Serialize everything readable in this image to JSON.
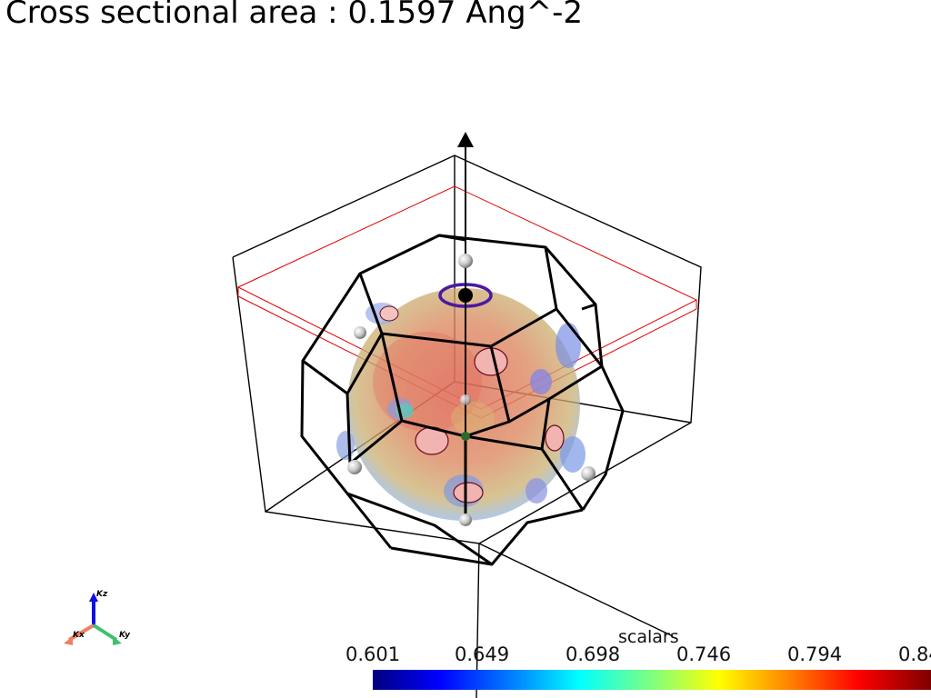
{
  "title": "Cross sectional area : 0.1597 Ang^-2",
  "colorbar": {
    "title": "scalars",
    "ticks": [
      "0.601",
      "0.649",
      "0.698",
      "0.746",
      "0.794",
      "0.84"
    ]
  },
  "orientation_axes": {
    "kz": "Kz",
    "kx": "Kx",
    "ky": "Ky"
  }
}
